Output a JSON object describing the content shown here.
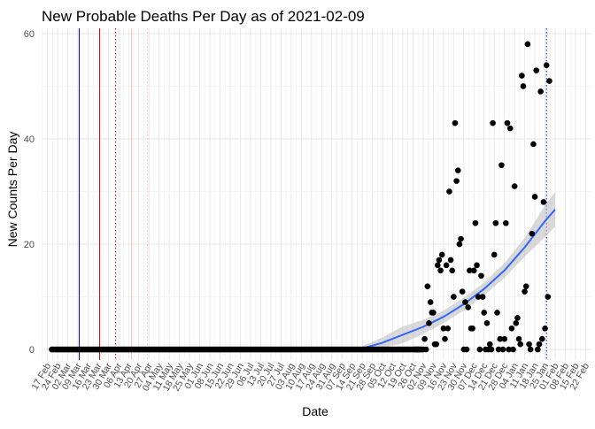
{
  "chart_data": {
    "type": "scatter",
    "title": "New Probable Deaths Per Day as of 2021-02-09",
    "xlabel": "Date",
    "ylabel": "New Counts Per Day",
    "ylim": [
      -2,
      61
    ],
    "y_ticks": [
      0,
      20,
      40,
      60
    ],
    "x_range": [
      "2020-02-13",
      "2021-02-26"
    ],
    "x_tick_dates": [
      "2020-02-17",
      "2020-02-24",
      "2020-03-02",
      "2020-03-09",
      "2020-03-16",
      "2020-03-23",
      "2020-03-30",
      "2020-04-06",
      "2020-04-13",
      "2020-04-20",
      "2020-04-27",
      "2020-05-04",
      "2020-05-11",
      "2020-05-18",
      "2020-05-25",
      "2020-06-01",
      "2020-06-08",
      "2020-06-15",
      "2020-06-22",
      "2020-06-29",
      "2020-07-06",
      "2020-07-13",
      "2020-07-20",
      "2020-07-27",
      "2020-08-03",
      "2020-08-10",
      "2020-08-17",
      "2020-08-24",
      "2020-08-31",
      "2020-09-07",
      "2020-09-14",
      "2020-09-21",
      "2020-09-28",
      "2020-10-05",
      "2020-10-12",
      "2020-10-19",
      "2020-10-26",
      "2020-11-02",
      "2020-11-09",
      "2020-11-16",
      "2020-11-23",
      "2020-11-30",
      "2020-12-07",
      "2020-12-14",
      "2020-12-21",
      "2020-12-28",
      "2021-01-04",
      "2021-01-11",
      "2021-01-18",
      "2021-01-25",
      "2021-02-01",
      "2021-02-08",
      "2021-02-15",
      "2021-02-22"
    ],
    "x_tick_labels": [
      "17 Feb",
      "24 Feb",
      "02 Mar",
      "09 Mar",
      "16 Mar",
      "23 Mar",
      "30 Mar",
      "06 Apr",
      "13 Apr",
      "20 Apr",
      "27 Apr",
      "04 May",
      "11 May",
      "18 May",
      "25 May",
      "01 Jun",
      "08 Jun",
      "15 Jun",
      "22 Jun",
      "29 Jun",
      "06 Jul",
      "13 Jul",
      "20 Jul",
      "27 Jul",
      "03 Aug",
      "10 Aug",
      "17 Aug",
      "24 Aug",
      "31 Aug",
      "07 Sep",
      "14 Sep",
      "21 Sep",
      "28 Sep",
      "05 Oct",
      "12 Oct",
      "19 Oct",
      "26 Oct",
      "02 Nov",
      "09 Nov",
      "16 Nov",
      "23 Nov",
      "30 Nov",
      "07 Dec",
      "14 Dec",
      "21 Dec",
      "28 Dec",
      "04 Jan",
      "11 Jan",
      "18 Jan",
      "25 Jan",
      "01 Feb",
      "08 Feb",
      "15 Feb",
      "22 Feb"
    ],
    "grid": true,
    "reference_lines": [
      {
        "date": "2020-03-10",
        "color": "#00008b",
        "style": "solid"
      },
      {
        "date": "2020-03-24",
        "color": "#dd0000",
        "style": "solid"
      },
      {
        "date": "2020-04-04",
        "color": "#dd0000",
        "style": "dotted"
      },
      {
        "date": "2020-04-15",
        "color": "#ffb6c1",
        "style": "solid"
      },
      {
        "date": "2020-04-26",
        "color": "#ffb6c1",
        "style": "dotted"
      },
      {
        "date": "2021-01-26",
        "color": "#0000ff",
        "style": "dotted"
      }
    ],
    "series": [
      {
        "zero_run": {
          "start": "2020-02-20",
          "end": "2020-10-31",
          "value": 0
        },
        "points": [
          [
            "2020-10-27",
            0
          ],
          [
            "2020-10-28",
            0
          ],
          [
            "2020-10-29",
            0
          ],
          [
            "2020-10-30",
            0
          ],
          [
            "2020-10-31",
            0
          ],
          [
            "2020-11-01",
            0
          ],
          [
            "2020-11-02",
            0
          ],
          [
            "2020-11-03",
            2
          ],
          [
            "2020-11-04",
            0
          ],
          [
            "2020-11-05",
            12
          ],
          [
            "2020-11-06",
            5
          ],
          [
            "2020-11-07",
            9
          ],
          [
            "2020-11-08",
            7
          ],
          [
            "2020-11-09",
            7
          ],
          [
            "2020-11-10",
            1
          ],
          [
            "2020-11-11",
            1
          ],
          [
            "2020-11-12",
            16
          ],
          [
            "2020-11-13",
            17
          ],
          [
            "2020-11-14",
            15
          ],
          [
            "2020-11-15",
            18
          ],
          [
            "2020-11-16",
            4
          ],
          [
            "2020-11-17",
            2
          ],
          [
            "2020-11-18",
            16
          ],
          [
            "2020-11-19",
            4
          ],
          [
            "2020-11-20",
            30
          ],
          [
            "2020-11-21",
            17
          ],
          [
            "2020-11-22",
            15
          ],
          [
            "2020-11-23",
            10
          ],
          [
            "2020-11-24",
            43
          ],
          [
            "2020-11-25",
            32
          ],
          [
            "2020-11-26",
            34
          ],
          [
            "2020-11-27",
            20
          ],
          [
            "2020-11-28",
            21
          ],
          [
            "2020-11-29",
            11
          ],
          [
            "2020-11-30",
            0
          ],
          [
            "2020-12-01",
            9
          ],
          [
            "2020-12-02",
            0
          ],
          [
            "2020-12-03",
            8
          ],
          [
            "2020-12-04",
            15
          ],
          [
            "2020-12-05",
            4
          ],
          [
            "2020-12-06",
            4
          ],
          [
            "2020-12-07",
            15
          ],
          [
            "2020-12-08",
            24
          ],
          [
            "2020-12-09",
            16
          ],
          [
            "2020-12-10",
            10
          ],
          [
            "2020-12-11",
            0
          ],
          [
            "2020-12-12",
            14
          ],
          [
            "2020-12-13",
            10
          ],
          [
            "2020-12-14",
            7
          ],
          [
            "2020-12-15",
            0
          ],
          [
            "2020-12-16",
            5
          ],
          [
            "2020-12-17",
            0
          ],
          [
            "2020-12-18",
            1
          ],
          [
            "2020-12-19",
            0
          ],
          [
            "2020-12-20",
            43
          ],
          [
            "2020-12-21",
            18
          ],
          [
            "2020-12-22",
            24
          ],
          [
            "2020-12-23",
            7
          ],
          [
            "2020-12-24",
            0
          ],
          [
            "2020-12-25",
            2
          ],
          [
            "2020-12-26",
            35
          ],
          [
            "2020-12-27",
            0
          ],
          [
            "2020-12-28",
            2
          ],
          [
            "2020-12-29",
            24
          ],
          [
            "2020-12-30",
            43
          ],
          [
            "2020-12-31",
            0
          ],
          [
            "2021-01-01",
            42
          ],
          [
            "2021-01-02",
            4
          ],
          [
            "2021-01-03",
            0
          ],
          [
            "2021-01-04",
            31
          ],
          [
            "2021-01-05",
            5
          ],
          [
            "2021-01-06",
            6
          ],
          [
            "2021-01-07",
            2
          ],
          [
            "2021-01-08",
            1
          ],
          [
            "2021-01-09",
            52
          ],
          [
            "2021-01-10",
            50
          ],
          [
            "2021-01-11",
            11
          ],
          [
            "2021-01-12",
            12
          ],
          [
            "2021-01-13",
            58
          ],
          [
            "2021-01-14",
            1
          ],
          [
            "2021-01-15",
            0
          ],
          [
            "2021-01-16",
            22
          ],
          [
            "2021-01-17",
            39
          ],
          [
            "2021-01-18",
            29
          ],
          [
            "2021-01-19",
            53
          ],
          [
            "2021-01-20",
            0
          ],
          [
            "2021-01-21",
            1
          ],
          [
            "2021-01-22",
            49
          ],
          [
            "2021-01-23",
            2
          ],
          [
            "2021-01-24",
            28
          ],
          [
            "2021-01-25",
            4
          ],
          [
            "2021-01-26",
            54
          ],
          [
            "2021-01-27",
            10
          ],
          [
            "2021-01-28",
            51
          ]
        ]
      }
    ],
    "smooth": {
      "color": "#3366ff",
      "band_color": "#bfbfbf",
      "points": [
        {
          "date": "2020-09-21",
          "fit": 0.2,
          "lo": -0.2,
          "hi": 0.6
        },
        {
          "date": "2020-10-05",
          "fit": 1.3,
          "lo": 0.3,
          "hi": 2.3
        },
        {
          "date": "2020-10-19",
          "fit": 2.8,
          "lo": 1.2,
          "hi": 4.4
        },
        {
          "date": "2020-11-02",
          "fit": 4.3,
          "lo": 2.9,
          "hi": 5.6
        },
        {
          "date": "2020-11-16",
          "fit": 6.2,
          "lo": 5.0,
          "hi": 7.4
        },
        {
          "date": "2020-11-30",
          "fit": 8.6,
          "lo": 7.4,
          "hi": 9.8
        },
        {
          "date": "2020-12-14",
          "fit": 11.5,
          "lo": 10.3,
          "hi": 12.7
        },
        {
          "date": "2020-12-28",
          "fit": 15.0,
          "lo": 13.6,
          "hi": 16.4
        },
        {
          "date": "2021-01-11",
          "fit": 19.4,
          "lo": 17.6,
          "hi": 21.2
        },
        {
          "date": "2021-01-25",
          "fit": 24.4,
          "lo": 21.4,
          "hi": 27.4
        },
        {
          "date": "2021-02-01",
          "fit": 26.6,
          "lo": 23.3,
          "hi": 29.9
        }
      ]
    }
  }
}
